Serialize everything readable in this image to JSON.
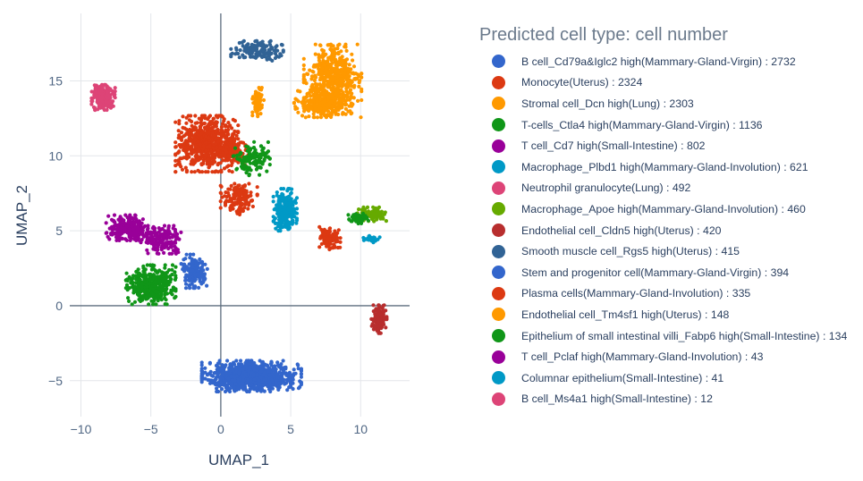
{
  "chart_data": {
    "type": "scatter",
    "xlabel": "UMAP_1",
    "ylabel": "UMAP_2",
    "xlim": [
      -10.8,
      13.5
    ],
    "ylim": [
      -7.4,
      19.5
    ],
    "xticks": [
      -10,
      -5,
      0,
      5,
      10
    ],
    "yticks": [
      -5,
      0,
      5,
      10,
      15
    ],
    "xtick_labels": [
      "−10",
      "−5",
      "0",
      "5",
      "10"
    ],
    "ytick_labels": [
      "−5",
      "0",
      "5",
      "10",
      "15"
    ],
    "grid": true,
    "legend": {
      "title": "Predicted cell type: cell number",
      "position": "right"
    },
    "series": [
      {
        "name": "B cell_Cd79a&Iglc2 high(Mammary-Gland-Virgin) : 2732",
        "color": "#3366cc",
        "count": 2732,
        "clusters": [
          {
            "cx": 2.2,
            "cy": -4.7,
            "sx": 1.9,
            "sy": 0.55,
            "n": 900
          }
        ]
      },
      {
        "name": "Monocyte(Uterus) : 2324",
        "color": "#dc3912",
        "count": 2324,
        "clusters": [
          {
            "cx": -1.0,
            "cy": 10.8,
            "sx": 1.2,
            "sy": 1.0,
            "n": 650
          },
          {
            "cx": 1.3,
            "cy": 7.2,
            "sx": 0.7,
            "sy": 0.6,
            "n": 150
          },
          {
            "cx": 0.8,
            "cy": 10.3,
            "sx": 0.7,
            "sy": 0.7,
            "n": 120
          }
        ]
      },
      {
        "name": "Stromal cell_Dcn high(Lung) : 2303",
        "color": "#ff9900",
        "count": 2303,
        "clusters": [
          {
            "cx": 8.0,
            "cy": 15.0,
            "sx": 1.1,
            "sy": 1.3,
            "n": 550
          },
          {
            "cx": 7.3,
            "cy": 13.5,
            "sx": 1.1,
            "sy": 0.5,
            "n": 200
          },
          {
            "cx": 2.6,
            "cy": 13.5,
            "sx": 0.18,
            "sy": 0.6,
            "n": 40
          }
        ]
      },
      {
        "name": "T-cells_Ctla4 high(Mammary-Gland-Virgin) : 1136",
        "color": "#109618",
        "count": 1136,
        "clusters": [
          {
            "cx": -5.0,
            "cy": 1.4,
            "sx": 0.95,
            "sy": 0.7,
            "n": 380
          },
          {
            "cx": 2.2,
            "cy": 9.8,
            "sx": 0.7,
            "sy": 0.6,
            "n": 120
          }
        ]
      },
      {
        "name": "T cell_Cd7 high(Small-Intestine) : 802",
        "color": "#990099",
        "count": 802,
        "clusters": [
          {
            "cx": -6.7,
            "cy": 5.2,
            "sx": 0.8,
            "sy": 0.45,
            "n": 200
          },
          {
            "cx": -4.2,
            "cy": 4.4,
            "sx": 0.9,
            "sy": 0.5,
            "n": 180
          }
        ]
      },
      {
        "name": "Macrophage_Plbd1 high(Mammary-Gland-Involution) : 621",
        "color": "#0099c6",
        "count": 621,
        "clusters": [
          {
            "cx": 4.6,
            "cy": 6.4,
            "sx": 0.45,
            "sy": 0.75,
            "n": 230
          },
          {
            "cx": 10.6,
            "cy": 4.5,
            "sx": 0.25,
            "sy": 0.12,
            "n": 10
          }
        ]
      },
      {
        "name": "Neutrophil granulocyte(Lung) : 492",
        "color": "#dd4477",
        "count": 492,
        "clusters": [
          {
            "cx": -8.4,
            "cy": 13.9,
            "sx": 0.45,
            "sy": 0.45,
            "n": 220
          }
        ]
      },
      {
        "name": "Macrophage_Apoe high(Mammary-Gland-Involution) : 460",
        "color": "#66aa00",
        "count": 460,
        "clusters": [
          {
            "cx": 10.8,
            "cy": 6.1,
            "sx": 0.55,
            "sy": 0.25,
            "n": 110
          }
        ]
      },
      {
        "name": "Endothelial cell_Cldn5 high(Uterus) : 420",
        "color": "#b82e2e",
        "count": 420,
        "clusters": [
          {
            "cx": 11.3,
            "cy": -0.9,
            "sx": 0.3,
            "sy": 0.5,
            "n": 130
          }
        ]
      },
      {
        "name": "Smooth muscle cell_Rgs5 high(Uterus) : 415",
        "color": "#316395",
        "count": 415,
        "clusters": [
          {
            "cx": 2.6,
            "cy": 17.0,
            "sx": 1.0,
            "sy": 0.35,
            "n": 140
          }
        ]
      },
      {
        "name": "Stem and progenitor cell(Mammary-Gland-Virgin) : 394",
        "color": "#3366cc",
        "count": 394,
        "clusters": [
          {
            "cx": -1.9,
            "cy": 2.3,
            "sx": 0.5,
            "sy": 0.6,
            "n": 150
          }
        ]
      },
      {
        "name": "Plasma cells(Mammary-Gland-Involution) : 335",
        "color": "#dc3912",
        "count": 335,
        "clusters": [
          {
            "cx": 7.8,
            "cy": 4.5,
            "sx": 0.4,
            "sy": 0.4,
            "n": 110
          }
        ]
      },
      {
        "name": "Endothelial cell_Tm4sf1 high(Uterus) : 148",
        "color": "#ff9900",
        "count": 148,
        "clusters": [
          {
            "cx": 2.7,
            "cy": 13.6,
            "sx": 0.2,
            "sy": 0.45,
            "n": 40
          }
        ]
      },
      {
        "name": "Epithelium of small intestinal villi_Fabp6 high(Small-Intestine) : 134",
        "color": "#109618",
        "count": 134,
        "clusters": [
          {
            "cx": 9.8,
            "cy": 5.8,
            "sx": 0.4,
            "sy": 0.2,
            "n": 40
          }
        ]
      },
      {
        "name": "T cell_Pclaf high(Mammary-Gland-Involution) : 43",
        "color": "#990099",
        "count": 43,
        "clusters": [
          {
            "cx": -6.0,
            "cy": 5.0,
            "sx": 0.4,
            "sy": 0.3,
            "n": 20
          }
        ]
      },
      {
        "name": "Columnar epithelium(Small-Intestine) : 41",
        "color": "#0099c6",
        "count": 41,
        "clusters": [
          {
            "cx": 10.8,
            "cy": 4.4,
            "sx": 0.3,
            "sy": 0.15,
            "n": 12
          }
        ]
      },
      {
        "name": "B cell_Ms4a1 high(Small-Intestine) : 12",
        "color": "#dd4477",
        "count": 12,
        "clusters": [
          {
            "cx": -8.2,
            "cy": 14.1,
            "sx": 0.2,
            "sy": 0.2,
            "n": 6
          }
        ]
      }
    ]
  }
}
